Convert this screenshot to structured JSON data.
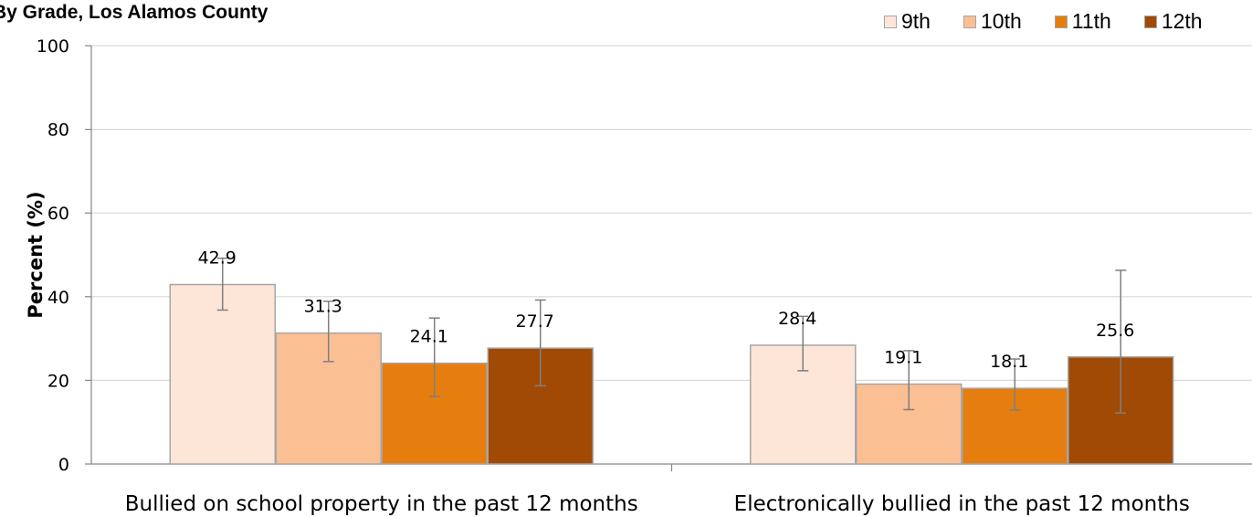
{
  "chart_data": {
    "type": "bar",
    "title": "By Grade, Los Alamos County",
    "ylabel": "Percent (%)",
    "xlabel": "",
    "ylim": [
      0,
      100
    ],
    "yticks": [
      0,
      20,
      40,
      60,
      80,
      100
    ],
    "grid": true,
    "legend_position": "top-right",
    "categories": [
      "Bullied on school property in the past 12 months",
      "Electronically bullied in the past 12 months"
    ],
    "series": [
      {
        "name": "9th",
        "color": "#fde5d8",
        "values": [
          42.9,
          28.4
        ],
        "ci_low": [
          36.8,
          22.3
        ],
        "ci_high": [
          49.2,
          35.3
        ]
      },
      {
        "name": "10th",
        "color": "#fbbf94",
        "values": [
          31.3,
          19.1
        ],
        "ci_low": [
          24.5,
          13.0
        ],
        "ci_high": [
          38.9,
          27.1
        ]
      },
      {
        "name": "11th",
        "color": "#e57e0e",
        "values": [
          24.1,
          18.1
        ],
        "ci_low": [
          16.1,
          12.9
        ],
        "ci_high": [
          34.9,
          25.1
        ]
      },
      {
        "name": "12th",
        "color": "#a04a06",
        "values": [
          27.7,
          25.6
        ],
        "ci_low": [
          18.7,
          12.2
        ],
        "ci_high": [
          39.2,
          46.3
        ]
      }
    ]
  }
}
